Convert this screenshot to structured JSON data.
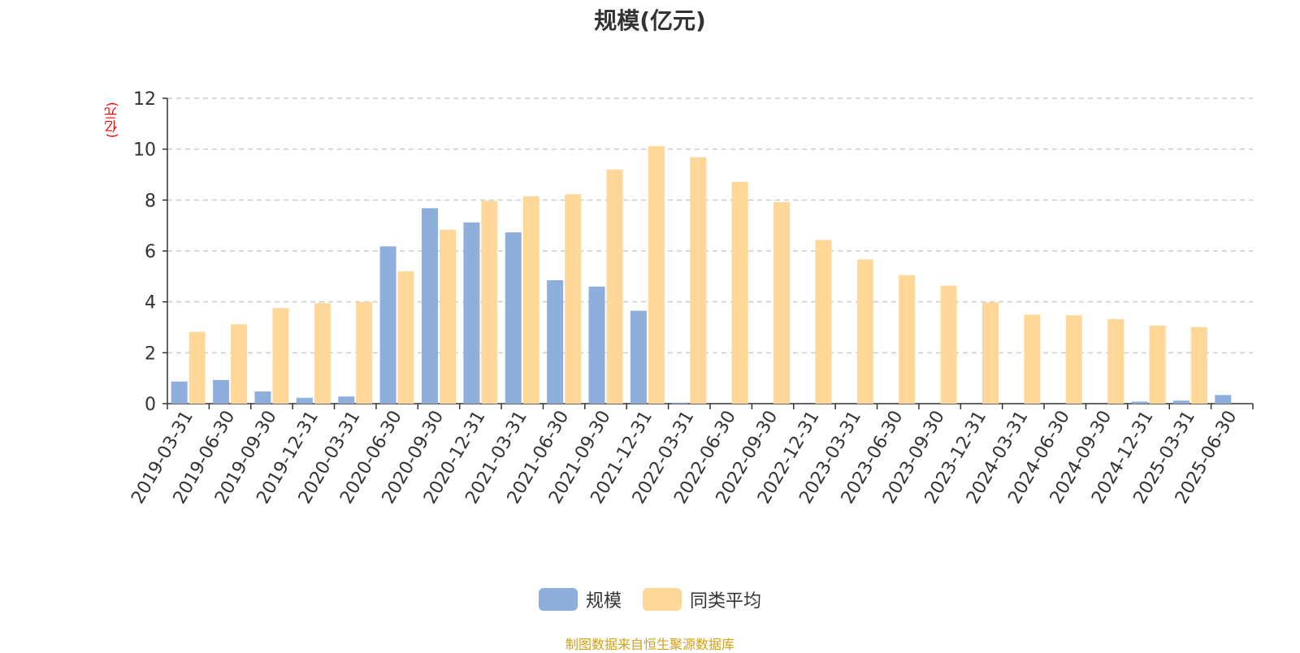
{
  "chart_data": {
    "type": "bar",
    "title": "规模(亿元)",
    "ylabel": "(亿元)",
    "xlabel": "",
    "ylim": [
      0,
      12
    ],
    "yticks": [
      0,
      2,
      4,
      6,
      8,
      10,
      12
    ],
    "grid": true,
    "legend_position": "bottom",
    "categories": [
      "2019-03-31",
      "2019-06-30",
      "2019-09-30",
      "2019-12-31",
      "2020-03-31",
      "2020-06-30",
      "2020-09-30",
      "2020-12-31",
      "2021-03-31",
      "2021-06-30",
      "2021-09-30",
      "2021-12-31",
      "2022-03-31",
      "2022-06-30",
      "2022-09-30",
      "2022-12-31",
      "2023-03-31",
      "2023-06-30",
      "2023-09-30",
      "2023-12-31",
      "2024-03-31",
      "2024-06-30",
      "2024-09-30",
      "2024-12-31",
      "2025-03-31",
      "2025-06-30"
    ],
    "series": [
      {
        "name": "规模",
        "color": "#8eaedc",
        "values": [
          0.87,
          0.93,
          0.48,
          0.23,
          0.28,
          6.18,
          7.68,
          7.12,
          6.73,
          4.85,
          4.6,
          3.65,
          0.04,
          0,
          0,
          0,
          0,
          0,
          0,
          0,
          0,
          0,
          0,
          0.08,
          0.12,
          0.34
        ]
      },
      {
        "name": "同类平均",
        "color": "#ffd899",
        "values": [
          2.82,
          3.12,
          3.76,
          3.95,
          4.0,
          5.2,
          6.83,
          7.97,
          8.15,
          8.23,
          9.2,
          10.12,
          9.68,
          8.72,
          7.92,
          6.43,
          5.67,
          5.05,
          4.64,
          3.98,
          3.5,
          3.47,
          3.32,
          3.07,
          3.01,
          null
        ]
      }
    ]
  },
  "source_note": "制图数据来自恒生聚源数据库"
}
